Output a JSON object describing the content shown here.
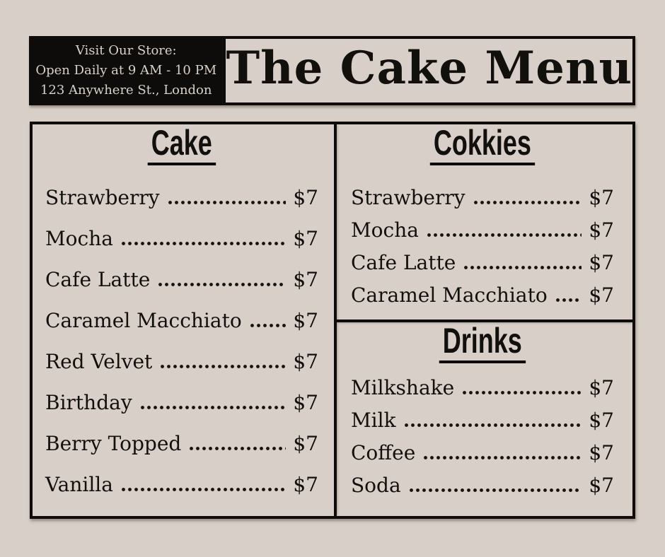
{
  "colors": {
    "background": "#d8d0c8",
    "ink": "#0d0c0a",
    "store_box_bg": "#0d0c0a",
    "store_box_text": "#d9d1c9"
  },
  "header": {
    "store_info_lines": [
      "Visit Our Store:",
      "Open Daily at 9 AM - 10 PM",
      "123 Anywhere St., London"
    ],
    "title": "The Cake Menu"
  },
  "menu": {
    "sections": [
      {
        "heading": "Cake",
        "items": [
          {
            "name": "Strawberry",
            "price": "$7"
          },
          {
            "name": "Mocha",
            "price": "$7"
          },
          {
            "name": "Cafe Latte",
            "price": "$7"
          },
          {
            "name": "Caramel Macchiato",
            "price": "$7"
          },
          {
            "name": "Red Velvet",
            "price": "$7"
          },
          {
            "name": "Birthday",
            "price": "$7"
          },
          {
            "name": "Berry Topped",
            "price": "$7"
          },
          {
            "name": "Vanilla",
            "price": "$7"
          }
        ]
      },
      {
        "heading": "Cokkies",
        "items": [
          {
            "name": "Strawberry",
            "price": "$7"
          },
          {
            "name": "Mocha",
            "price": "$7"
          },
          {
            "name": "Cafe Latte",
            "price": "$7"
          },
          {
            "name": "Caramel Macchiato",
            "price": "$7"
          }
        ]
      },
      {
        "heading": "Drinks",
        "items": [
          {
            "name": "Milkshake",
            "price": "$7"
          },
          {
            "name": "Milk",
            "price": "$7"
          },
          {
            "name": "Coffee",
            "price": "$7"
          },
          {
            "name": "Soda",
            "price": "$7"
          }
        ]
      }
    ]
  }
}
